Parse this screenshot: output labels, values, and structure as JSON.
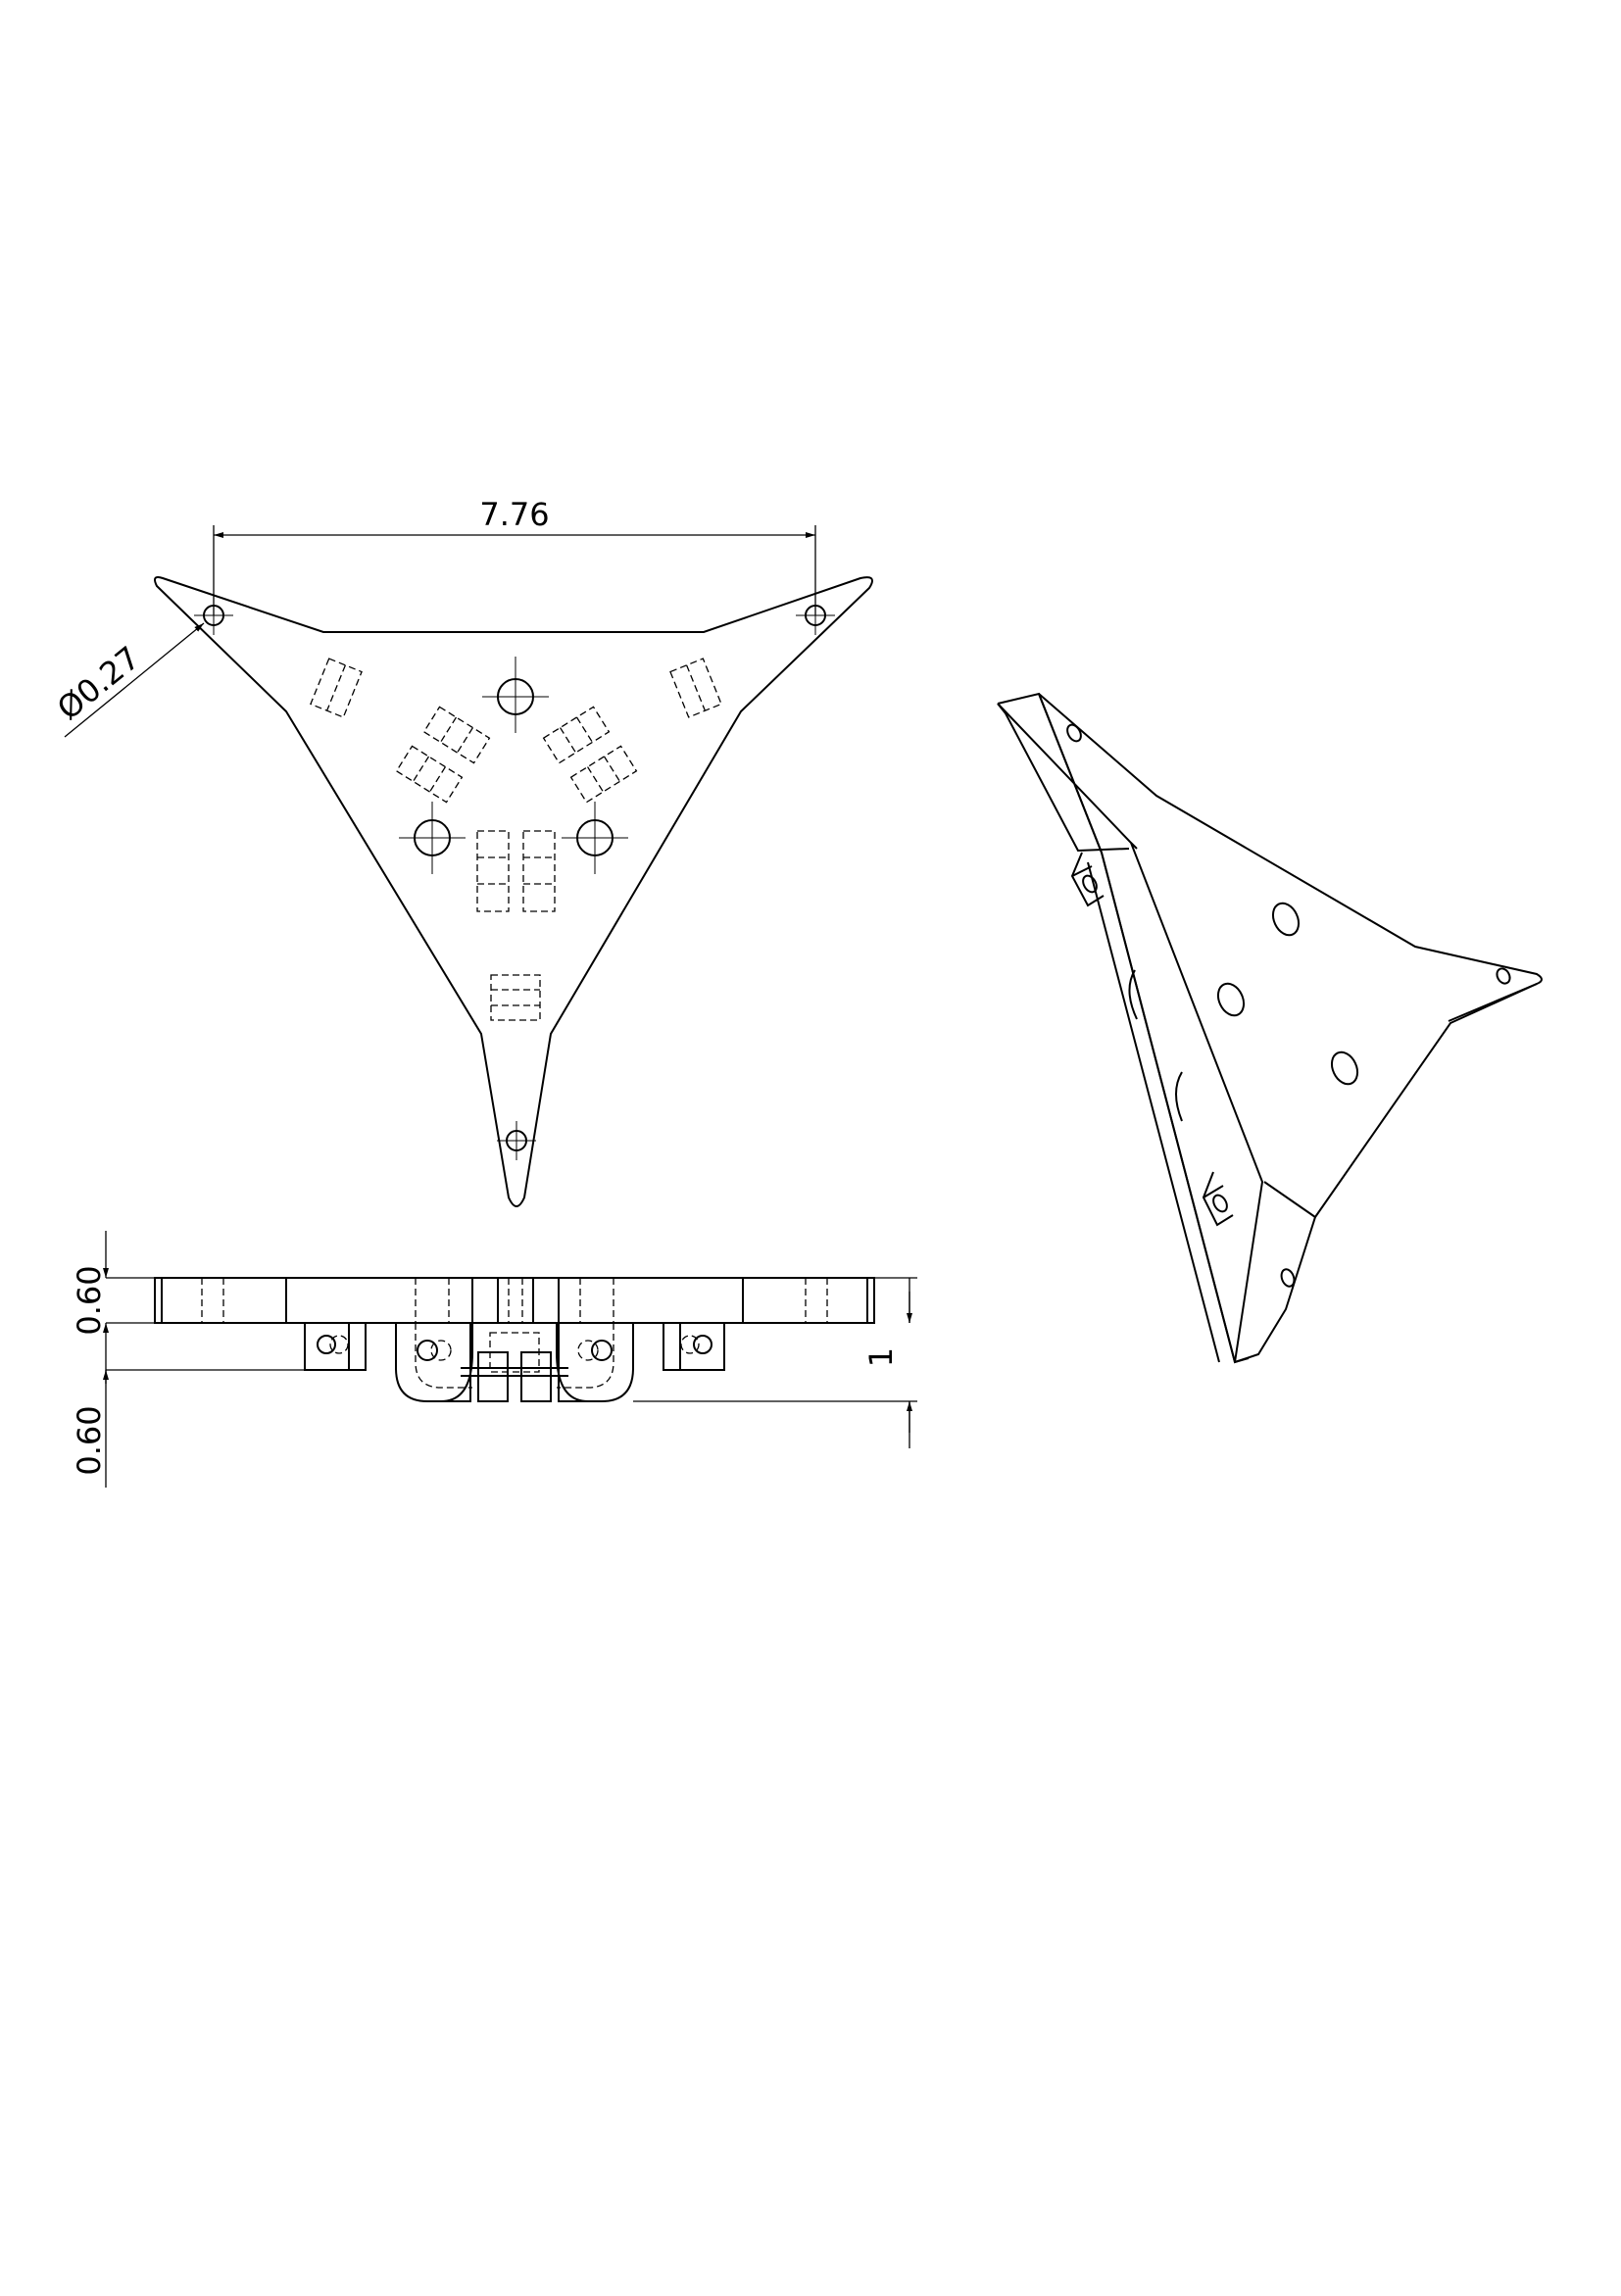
{
  "dimensions": {
    "overall_width": "7.76",
    "hole_diameter": "Ø0.27",
    "plate_thickness": "0.60",
    "mount_height": "0.60",
    "total_height": "1"
  }
}
